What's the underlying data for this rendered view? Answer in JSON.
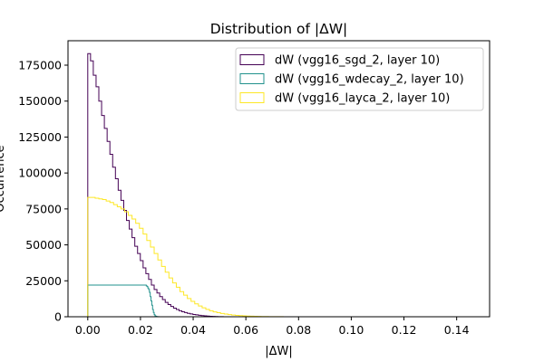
{
  "chart_data": {
    "type": "histogram",
    "title": "Distribution of |ΔW|",
    "xlabel": "|ΔW|",
    "ylabel": "Occurrence",
    "xlim": [
      -0.0075,
      0.1525
    ],
    "ylim": [
      0,
      192000
    ],
    "xticks": [
      0.0,
      0.02,
      0.04,
      0.06,
      0.08,
      0.1,
      0.12,
      0.14
    ],
    "xtick_labels": [
      "0.00",
      "0.02",
      "0.04",
      "0.06",
      "0.08",
      "0.10",
      "0.12",
      "0.14"
    ],
    "yticks": [
      0,
      25000,
      50000,
      75000,
      100000,
      125000,
      150000,
      175000
    ],
    "ytick_labels": [
      "0",
      "25000",
      "50000",
      "75000",
      "100000",
      "125000",
      "150000",
      "175000"
    ],
    "grid": false,
    "legend_position": "top-right",
    "series": [
      {
        "name": "dW (vgg16_sgd_2, layer 10)",
        "color": "#440154",
        "bin_start": 0.0,
        "bin_width": 0.00105,
        "values": [
          183000,
          178000,
          168000,
          160000,
          150000,
          140000,
          131000,
          122000,
          113000,
          104000,
          96000,
          88000,
          81000,
          74000,
          67000,
          61000,
          55000,
          49000,
          44000,
          39000,
          34000,
          30000,
          26000,
          22000,
          19000,
          16500,
          14000,
          12000,
          10000,
          8500,
          7200,
          6000,
          5000,
          4200,
          3500,
          2900,
          2400,
          2000,
          1600,
          1300,
          1000,
          800,
          600,
          450,
          320,
          220,
          150,
          100,
          60,
          30
        ]
      },
      {
        "name": "dW (vgg16_wdecay_2, layer 10)",
        "color": "#21918c",
        "bin_start": 0.0,
        "bin_width": 0.0003,
        "values": [
          22000,
          22000,
          22000,
          22000,
          22000,
          22000,
          22000,
          22000,
          22000,
          22000,
          22000,
          22000,
          22000,
          22000,
          22000,
          22000,
          22000,
          22000,
          22000,
          22000,
          22000,
          22000,
          22000,
          22000,
          22000,
          22000,
          22000,
          22000,
          22000,
          22000,
          22000,
          22000,
          22000,
          22000,
          22000,
          22000,
          22000,
          22000,
          22000,
          22000,
          22000,
          22000,
          22000,
          22000,
          22000,
          22000,
          22000,
          22000,
          22000,
          22000,
          22000,
          22000,
          22000,
          22000,
          22000,
          22000,
          22000,
          22000,
          22000,
          22000,
          22000,
          22000,
          22000,
          22000,
          22000,
          22000,
          22000,
          22000,
          22000,
          22000,
          22000,
          22000,
          22000,
          22000,
          21500,
          21000,
          20000,
          19000,
          17000,
          14000,
          11000,
          8000,
          5000,
          3000,
          1500,
          700,
          300,
          150,
          80,
          40,
          20,
          10,
          5,
          2,
          1
        ]
      },
      {
        "name": "dW (vgg16_layca_2, layer 10)",
        "color": "#fde725",
        "bin_start": 0.0,
        "bin_width": 0.0014,
        "values": [
          83000,
          83000,
          82500,
          82000,
          81500,
          80500,
          79500,
          78000,
          76500,
          75000,
          73000,
          70500,
          68000,
          65000,
          61500,
          57500,
          53000,
          48500,
          44000,
          39500,
          35000,
          31000,
          27000,
          23500,
          20500,
          17500,
          15000,
          12700,
          10700,
          9000,
          7500,
          6200,
          5100,
          4200,
          3400,
          2800,
          2300,
          1850,
          1500,
          1200,
          950,
          750,
          600,
          470,
          370,
          290,
          225,
          175,
          135,
          105,
          80,
          62,
          48,
          37,
          28,
          21,
          16,
          12,
          9,
          7,
          5,
          4,
          3,
          2,
          2,
          1,
          1,
          1,
          1,
          1,
          1,
          1,
          0,
          0,
          0,
          0,
          0,
          0,
          0,
          0,
          0,
          0,
          0,
          0,
          0,
          0,
          0,
          0,
          0,
          0,
          0,
          0,
          0,
          0,
          0,
          0,
          0,
          0,
          0,
          0,
          1
        ]
      }
    ]
  }
}
